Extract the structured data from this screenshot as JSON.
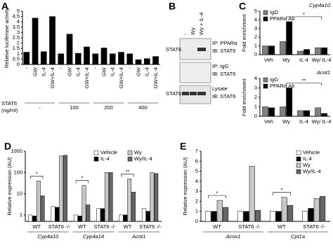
{
  "chart_data": [
    {
      "type": "bar",
      "panel": "A",
      "ylabel": "Relative luciferase activity",
      "categories": [
        "-",
        "GW",
        "IL-4",
        "GW+IL-4",
        "-",
        "GW",
        "IL-4",
        "GW+IL-4",
        "-",
        "GW",
        "IL-4",
        "GW+IL-4",
        "-",
        "GW",
        "IL-4",
        "GW+IL-4"
      ],
      "values": [
        1.15,
        4.35,
        1.2,
        4.5,
        1.0,
        2.85,
        1.05,
        1.65,
        1.0,
        1.55,
        1.0,
        1.15,
        1.0,
        0.45,
        0.55,
        0.75
      ],
      "color": "#000000",
      "ylim": [
        0,
        5
      ],
      "yticks": [
        0,
        0.5,
        1,
        1.5,
        2,
        2.5,
        3,
        3.5,
        4,
        4.5,
        5
      ],
      "group_labels": [
        "-",
        "100",
        "200",
        "400"
      ],
      "group_axis_label": [
        "STAT6",
        "(ng/ml)"
      ]
    },
    {
      "type": "bar",
      "panel": "C",
      "title": "Cyp4a10",
      "ylabel": "Fold enrichment",
      "categories": [
        "Veh",
        "Wy",
        "IL-4",
        "Wy/ IL-4"
      ],
      "series": [
        {
          "name": "IgG",
          "color": "#808080",
          "values": [
            1,
            1.5,
            0.4,
            0.8
          ]
        },
        {
          "name": "PPARα Ab",
          "color": "#000000",
          "values": [
            1,
            3.8,
            0.6,
            0.8
          ]
        }
      ],
      "ylim": [
        0,
        5
      ],
      "yticks": [
        0,
        1,
        2,
        3,
        4,
        5
      ],
      "legend": "upper left",
      "annotations": [
        {
          "text": "*",
          "from": 1,
          "to": 3
        }
      ]
    },
    {
      "type": "bar",
      "title": "Acot1",
      "ylabel": "Fold enrichment",
      "categories": [
        "Veh",
        "Wy",
        "IL-4",
        "Wy/ IL-4"
      ],
      "series": [
        {
          "name": "IgG",
          "color": "#808080",
          "values": [
            1,
            1,
            0.6,
            0.9
          ]
        },
        {
          "name": "PPARα Ab",
          "color": "#000000",
          "values": [
            0.9,
            3,
            0.6,
            0.3
          ]
        }
      ],
      "ylim": [
        0,
        4
      ],
      "yticks": [
        0,
        1,
        2,
        3,
        4
      ],
      "legend": "upper left",
      "annotations": [
        {
          "text": "**",
          "from": 1,
          "to": 3
        }
      ]
    },
    {
      "type": "bar",
      "panel": "D",
      "ylabel": "Relative expression (AU)",
      "categories": [
        "WT",
        "STAT6 -/-",
        "WT",
        "STAT6 -/-",
        "WT",
        "STAT6 -/-"
      ],
      "group_labels": [
        "Cyp4a10",
        "Cyp4a14",
        "Acot1"
      ],
      "series": [
        {
          "name": "Vehicle",
          "color": "#ffffff",
          "values": [
            1,
            2.5,
            1,
            2,
            1,
            2
          ]
        },
        {
          "name": "IL-4",
          "color": "#000000",
          "values": [
            0.9,
            2.3,
            0.9,
            2,
            1,
            1.5
          ]
        },
        {
          "name": "Wy",
          "color": "#c8c8c8",
          "values": [
            40,
            600,
            25,
            100,
            50,
            100
          ]
        },
        {
          "name": "Wy/IL-4",
          "color": "#666666",
          "values": [
            8,
            650,
            3,
            100,
            12,
            90
          ]
        }
      ],
      "log_scale": true,
      "ylim": [
        0.5,
        1000
      ],
      "yticks": [
        1,
        10,
        100,
        1000
      ],
      "legend": "upper right",
      "annotations": [
        {
          "text": "*",
          "category": 0
        },
        {
          "text": "*",
          "category": 2
        },
        {
          "text": "**",
          "category": 4
        }
      ]
    },
    {
      "type": "bar",
      "panel": "E",
      "ylabel": "Relative expression (AU)",
      "categories": [
        "WT",
        "STAT6 -/-",
        "WT",
        "STAT6 -/-"
      ],
      "group_labels": [
        "Acox1",
        "Cpt1a"
      ],
      "series": [
        {
          "name": "Vehicle",
          "color": "#ffffff",
          "values": [
            1,
            1,
            1,
            1
          ]
        },
        {
          "name": "IL-4",
          "color": "#000000",
          "values": [
            1,
            1,
            1,
            1.3
          ]
        },
        {
          "name": "Wy",
          "color": "#c8c8c8",
          "values": [
            2.1,
            5.5,
            2.4,
            2.3
          ]
        },
        {
          "name": "Wy/IL-4",
          "color": "#666666",
          "values": [
            1.4,
            1.1,
            1.6,
            2.5
          ]
        }
      ],
      "ylim": [
        0,
        7
      ],
      "yticks": [
        0,
        1,
        2,
        3,
        4,
        5,
        6,
        7
      ],
      "legend": "upper right",
      "annotations": [
        {
          "text": "*",
          "category": 0
        },
        {
          "text": "*",
          "category": 2
        }
      ]
    }
  ],
  "blot": {
    "panel": "B",
    "lanes": [
      "-",
      "Wy",
      "Wy + IL-4"
    ],
    "row_labels": [
      "STAT6",
      "STAT6"
    ],
    "blots": [
      [
        "IP: PPARα",
        "IB: STAT6"
      ],
      [
        "IP: IgG",
        "IB: STAT6"
      ],
      [
        "Lysate",
        "IB: STAT6"
      ]
    ]
  }
}
